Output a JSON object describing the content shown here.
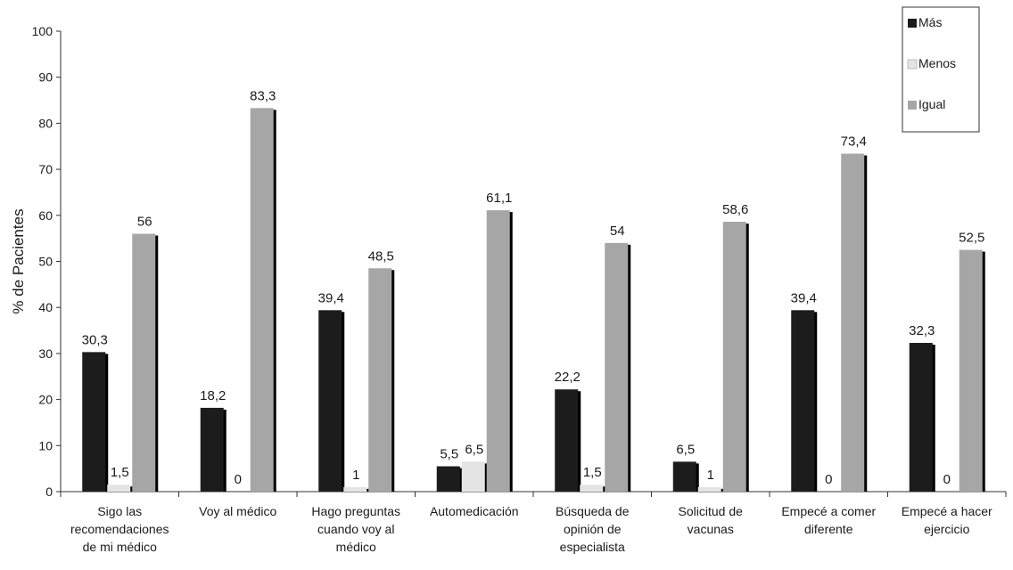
{
  "chart_data": {
    "type": "bar",
    "ylabel": "% de Pacientes",
    "xlabel": "",
    "ylim": [
      0,
      100
    ],
    "yticks": [
      0,
      10,
      20,
      30,
      40,
      50,
      60,
      70,
      80,
      90,
      100
    ],
    "grid": false,
    "legend_position": "top-right",
    "categories": [
      [
        "Sigo las",
        "recomendaciones",
        "de mi médico"
      ],
      [
        "Voy al médico"
      ],
      [
        "Hago preguntas",
        "cuando voy al",
        "médico"
      ],
      [
        "Automedicación"
      ],
      [
        "Búsqueda de",
        "opinión de",
        "especialista"
      ],
      [
        "Solicitud de",
        "vacunas"
      ],
      [
        "Empecé a comer",
        "diferente"
      ],
      [
        "Empecé a hacer",
        "ejercicio"
      ]
    ],
    "series": [
      {
        "name": "Más",
        "color": "#1c1c1c",
        "values": [
          30.3,
          18.2,
          39.4,
          5.5,
          22.2,
          6.5,
          39.4,
          32.3
        ],
        "labels": [
          "30,3",
          "18,2",
          "39,4",
          "5,5",
          "22,2",
          "6,5",
          "39,4",
          "32,3"
        ]
      },
      {
        "name": "Menos",
        "color": "#e4e4e4",
        "values": [
          1.5,
          0,
          1,
          6.5,
          1.5,
          1,
          0,
          0
        ],
        "labels": [
          "1,5",
          "0",
          "1",
          "6,5",
          "1,5",
          "1",
          "0",
          "0"
        ]
      },
      {
        "name": "Igual",
        "color": "#a6a6a6",
        "values": [
          56,
          83.3,
          48.5,
          61.1,
          54,
          58.6,
          73.4,
          52.5
        ],
        "labels": [
          "56",
          "83,3",
          "48,5",
          "61,1",
          "54",
          "58,6",
          "73,4",
          "52,5"
        ]
      }
    ]
  }
}
